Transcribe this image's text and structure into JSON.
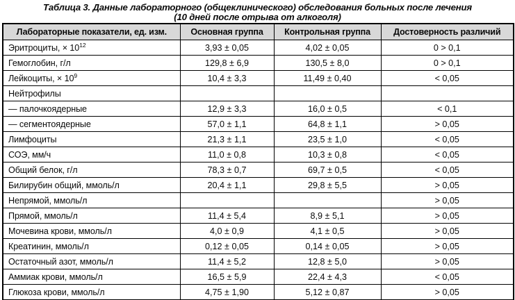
{
  "title": {
    "line1": "Таблица 3. Данные лабораторного (общеклинического) обследования больных после лечения",
    "line2": "(10 дней после отрыва от алкоголя)"
  },
  "colors": {
    "header_bg": "#d8d8d8",
    "border": "#000000",
    "text": "#0a0a0a"
  },
  "table": {
    "headers": [
      "Лабораторные показатели, ед. изм.",
      "Основная группа",
      "Контрольная группа",
      "Достоверность различий"
    ],
    "rows": [
      {
        "label": "Эритроциты, × 10",
        "sup": "12",
        "main": "3,93 ± 0,05",
        "control": "4,02 ± 0,05",
        "p": "0 > 0,1"
      },
      {
        "label": "Гемоглобин, г/л",
        "sup": "",
        "main": "129,8 ± 6,9",
        "control": "130,5 ± 8,0",
        "p": "0 > 0,1"
      },
      {
        "label": "Лейкоциты, × 10",
        "sup": "9",
        "main": "10,4 ± 3,3",
        "control": "11,49 ± 0,40",
        "p": "< 0,05"
      },
      {
        "label": "Нейтрофилы",
        "sup": "",
        "main": "",
        "control": "",
        "p": ""
      },
      {
        "label": "— палочкоядерные",
        "sup": "",
        "main": "12,9 ± 3,3",
        "control": "16,0 ± 0,5",
        "p": "< 0,1"
      },
      {
        "label": "— сегментоядерные",
        "sup": "",
        "main": "57,0 ± 1,1",
        "control": "64,8 ± 1,1",
        "p": "> 0,05"
      },
      {
        "label": "Лимфоциты",
        "sup": "",
        "main": "21,3 ± 1,1",
        "control": "23,5 ± 1,0",
        "p": "< 0,05"
      },
      {
        "label": "СОЭ, мм/ч",
        "sup": "",
        "main": "11,0 ± 0,8",
        "control": "10,3 ± 0,8",
        "p": "< 0,05"
      },
      {
        "label": "Общий белок, г/л",
        "sup": "",
        "main": "78,3 ± 0,7",
        "control": "69,7 ± 0,5",
        "p": "< 0,05"
      },
      {
        "label": "Билирубин общий, ммоль/л",
        "sup": "",
        "main": "20,4 ± 1,1",
        "control": "29,8 ± 5,5",
        "p": "> 0,05"
      },
      {
        "label": "Непрямой, ммоль/л",
        "sup": "",
        "main": "",
        "control": "",
        "p": "> 0,05"
      },
      {
        "label": "Прямой, ммоль/л",
        "sup": "",
        "main": "11,4 ± 5,4",
        "control": "8,9 ± 5,1",
        "p": "> 0,05"
      },
      {
        "label": "Мочевина крови, ммоль/л",
        "sup": "",
        "main": "4,0 ± 0,9",
        "control": "4,1 ± 0,5",
        "p": "> 0,05"
      },
      {
        "label": "Креатинин, ммоль/л",
        "sup": "",
        "main": "0,12 ± 0,05",
        "control": "0,14 ± 0,05",
        "p": "> 0,05"
      },
      {
        "label": "Остаточный азот, ммоль/л",
        "sup": "",
        "main": "11,4 ± 5,2",
        "control": "12,8 ± 5,0",
        "p": "> 0,05"
      },
      {
        "label": "Аммиак крови, ммоль/л",
        "sup": "",
        "main": "16,5 ± 5,9",
        "control": "22,4 ± 4,3",
        "p": "< 0,05"
      },
      {
        "label": "Глюкоза крови, ммоль/л",
        "sup": "",
        "main": "4,75 ± 1,90",
        "control": "5,12 ± 0,87",
        "p": "> 0,05"
      }
    ]
  }
}
